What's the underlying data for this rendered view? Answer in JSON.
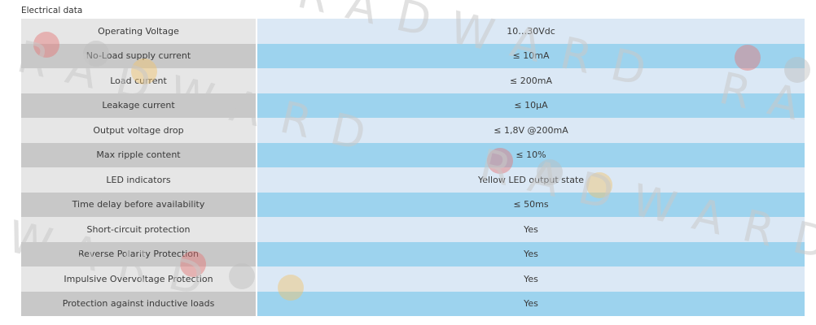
{
  "section": {
    "title": "Electrical data"
  },
  "rows": [
    {
      "label": "Operating Voltage",
      "value": "10…30Vdc"
    },
    {
      "label": "No-Load supply current",
      "value": "≤ 10mA"
    },
    {
      "label": "Load current",
      "value": "≤ 200mA"
    },
    {
      "label": "Leakage current",
      "value": "≤ 10µA"
    },
    {
      "label": "Output voltage drop",
      "value": "≤ 1,8V @200mA"
    },
    {
      "label": "Max ripple content",
      "value": "≤ 10%"
    },
    {
      "label": "LED indicators",
      "value": "Yellow LED output state"
    },
    {
      "label": "Time delay before availability",
      "value": "≤ 50ms"
    },
    {
      "label": "Short-circuit protection",
      "value": "Yes"
    },
    {
      "label": "Reverse Polarity Protection",
      "value": "Yes"
    },
    {
      "label": "Impulsive Overvoltage Protection",
      "value": "Yes"
    },
    {
      "label": "Protection against inductive loads",
      "value": "Yes"
    }
  ],
  "watermark": {
    "text": "RADWARD"
  },
  "colors": {
    "label_light": "#e6e6e6",
    "label_dark": "#c8c8c8",
    "value_light": "#dbe8f5",
    "value_dark": "#9dd3ee"
  }
}
